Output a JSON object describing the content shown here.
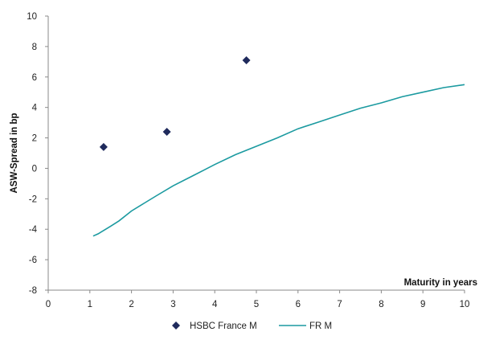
{
  "chart_data": {
    "type": "scatter",
    "title": "",
    "xlabel": "Maturity in years",
    "ylabel": "ASW-Spread in bp",
    "xlim": [
      0,
      10
    ],
    "ylim": [
      -8,
      10
    ],
    "x_ticks": [
      0,
      1,
      2,
      3,
      4,
      5,
      6,
      7,
      8,
      9,
      10
    ],
    "y_ticks": [
      -8,
      -6,
      -4,
      -2,
      0,
      2,
      4,
      6,
      8,
      10
    ],
    "grid": false,
    "legend_position": "bottom",
    "series": [
      {
        "name": "HSBC France M",
        "kind": "scatter",
        "marker": "diamond",
        "color": "#1f2a5c",
        "points": [
          {
            "x": 1.33,
            "y": 1.4
          },
          {
            "x": 2.85,
            "y": 2.4
          },
          {
            "x": 4.76,
            "y": 7.1
          }
        ]
      },
      {
        "name": "FR M",
        "kind": "line",
        "color": "#1b9aa0",
        "points": [
          {
            "x": 1.08,
            "y": -4.45
          },
          {
            "x": 1.2,
            "y": -4.3
          },
          {
            "x": 1.35,
            "y": -4.05
          },
          {
            "x": 1.5,
            "y": -3.8
          },
          {
            "x": 1.7,
            "y": -3.45
          },
          {
            "x": 2.0,
            "y": -2.8
          },
          {
            "x": 2.3,
            "y": -2.3
          },
          {
            "x": 2.6,
            "y": -1.8
          },
          {
            "x": 3.0,
            "y": -1.15
          },
          {
            "x": 3.5,
            "y": -0.45
          },
          {
            "x": 4.0,
            "y": 0.25
          },
          {
            "x": 4.5,
            "y": 0.9
          },
          {
            "x": 5.0,
            "y": 1.45
          },
          {
            "x": 5.5,
            "y": 2.0
          },
          {
            "x": 6.0,
            "y": 2.6
          },
          {
            "x": 6.5,
            "y": 3.05
          },
          {
            "x": 7.0,
            "y": 3.5
          },
          {
            "x": 7.5,
            "y": 3.95
          },
          {
            "x": 8.0,
            "y": 4.3
          },
          {
            "x": 8.5,
            "y": 4.7
          },
          {
            "x": 9.0,
            "y": 5.0
          },
          {
            "x": 9.5,
            "y": 5.3
          },
          {
            "x": 10.0,
            "y": 5.5
          }
        ]
      }
    ]
  }
}
